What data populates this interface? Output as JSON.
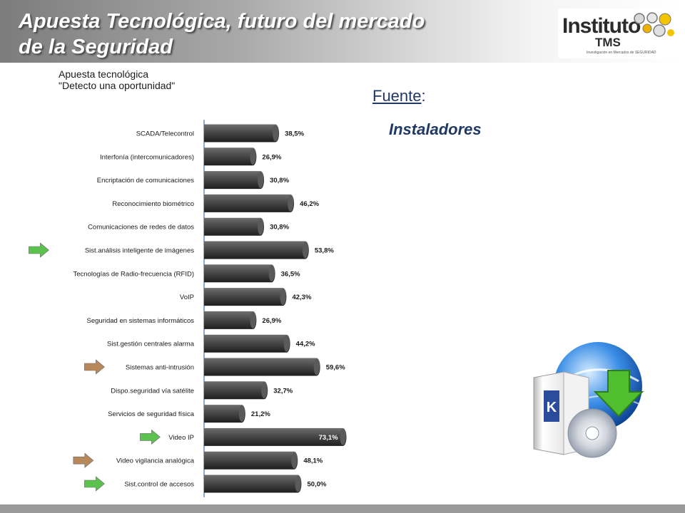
{
  "header": {
    "title_line1": "Apuesta Tecnológica, futuro del mercado",
    "title_line2": "de la Seguridad"
  },
  "logo": {
    "text_main": "Instituto",
    "text_tms": "TMS",
    "text_sub": "Investigación en Mercados de SEGURIDAD"
  },
  "source": {
    "label": "Fuente",
    "colon": ":",
    "value": "Instaladores"
  },
  "chart_data": {
    "type": "bar",
    "orientation": "horizontal",
    "title_line1": "Apuesta tecnológica",
    "title_line2": "\"Detecto una oportunidad\"",
    "categories": [
      "SCADA/Telecontrol",
      "Interfonía (intercomunicadores)",
      "Encriptación de comunicaciones",
      "Reconocimiento biométrico",
      "Comunicaciones de redes de datos",
      "Sist.análisis  inteligente de imágenes",
      "Tecnologías de Radio-frecuencia (RFID)",
      "VoIP",
      "Seguridad en sistemas  informáticos",
      "Sist.gestión centrales alarma",
      "Sistemas anti-intrusión",
      "Dispo.seguridad vía satélite",
      "Servicios de seguridad física",
      "Video IP",
      "Video vigilancia analógica",
      "Sist.control de accesos"
    ],
    "values": [
      38.5,
      26.9,
      30.8,
      46.2,
      30.8,
      53.8,
      36.5,
      42.3,
      26.9,
      44.2,
      59.6,
      32.7,
      21.2,
      73.1,
      48.1,
      50.0
    ],
    "value_labels": [
      "38,5%",
      "26,9%",
      "30,8%",
      "46,2%",
      "30,8%",
      "53,8%",
      "36,5%",
      "42,3%",
      "26,9%",
      "44,2%",
      "59,6%",
      "32,7%",
      "21,2%",
      "73,1%",
      "48,1%",
      "50,0%"
    ],
    "label_inside": [
      false,
      false,
      false,
      false,
      false,
      false,
      false,
      false,
      false,
      false,
      false,
      false,
      false,
      true,
      false,
      false
    ],
    "markers": [
      null,
      null,
      null,
      null,
      null,
      "green-arrow",
      null,
      null,
      null,
      null,
      "brown-arrow",
      null,
      null,
      "green-arrow",
      "brown-arrow",
      "green-arrow"
    ],
    "xlim": [
      0,
      100
    ],
    "grid": false,
    "legend": "none",
    "colors": {
      "bar": "#4a4a4a",
      "bar_highlight": "#8a8a8a",
      "green_arrow": "#5cc24f",
      "brown_arrow": "#b8875a"
    }
  }
}
